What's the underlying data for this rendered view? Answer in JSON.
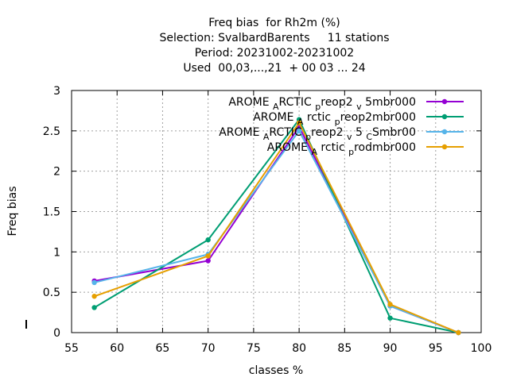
{
  "chart_data": {
    "type": "line",
    "title_lines": [
      "Freq bias  for Rh2m (%)",
      "Selection: SvalbardBarents     11 stations",
      "Period: 20231002-20231002",
      "Used  00,03,...,21  + 00 03 ... 24"
    ],
    "xlabel": "classes %",
    "ylabel": "Freq bias",
    "xlim": [
      55,
      100
    ],
    "ylim": [
      0,
      3
    ],
    "xticks": [
      55,
      60,
      65,
      70,
      75,
      80,
      85,
      90,
      95,
      100
    ],
    "yticks": [
      0,
      0.5,
      1,
      1.5,
      2,
      2.5,
      3
    ],
    "xtick_labels": [
      "55",
      "60",
      "65",
      "70",
      "75",
      "80",
      "85",
      "90",
      "95",
      "100"
    ],
    "ytick_labels": [
      "0",
      "0.5",
      "1",
      "1.5",
      "2",
      "2.5",
      "3"
    ],
    "grid": true,
    "legend_position": "top-right",
    "x": [
      57.5,
      70,
      80,
      90,
      97.5
    ],
    "series": [
      {
        "name": "AROME_ARCTIC_preop2_v5mbr000",
        "legend_parts": [
          [
            "AROME ",
            0
          ],
          [
            "A",
            1
          ],
          [
            "RCTIC ",
            0
          ],
          [
            "p",
            1
          ],
          [
            "reop2 ",
            0
          ],
          [
            "v",
            1
          ],
          [
            " 5mbr000",
            0
          ]
        ],
        "color": "#9400d3",
        "values": [
          0.64,
          0.89,
          2.55,
          0.33,
          0.0
        ]
      },
      {
        "name": "AROME_Arctic_preop2mbr000",
        "legend_parts": [
          [
            "AROME ",
            0
          ],
          [
            "A",
            1
          ],
          [
            " rctic ",
            0
          ],
          [
            "p",
            1
          ],
          [
            "reop2mbr000",
            0
          ]
        ],
        "color": "#009e73",
        "values": [
          0.31,
          1.15,
          2.64,
          0.18,
          0.0
        ]
      },
      {
        "name": "AROME_ARCTIC_preop2_v5_CSmbr00",
        "legend_parts": [
          [
            "AROME ",
            0
          ],
          [
            "A",
            1
          ],
          [
            "RCTIC ",
            0
          ],
          [
            "p",
            1
          ],
          [
            "reop2 ",
            0
          ],
          [
            "v",
            1
          ],
          [
            " 5 ",
            0
          ],
          [
            "C",
            1
          ],
          [
            "Smbr00",
            0
          ]
        ],
        "color": "#56b4e9",
        "values": [
          0.62,
          0.97,
          2.5,
          0.33,
          0.0
        ]
      },
      {
        "name": "AROME_Arctic_prodmbr000",
        "legend_parts": [
          [
            "AROME ",
            0
          ],
          [
            "A",
            1
          ],
          [
            " rctic ",
            0
          ],
          [
            "p",
            1
          ],
          [
            "rodmbr000",
            0
          ]
        ],
        "color": "#e69f00",
        "values": [
          0.45,
          0.95,
          2.6,
          0.35,
          0.0
        ]
      }
    ]
  }
}
